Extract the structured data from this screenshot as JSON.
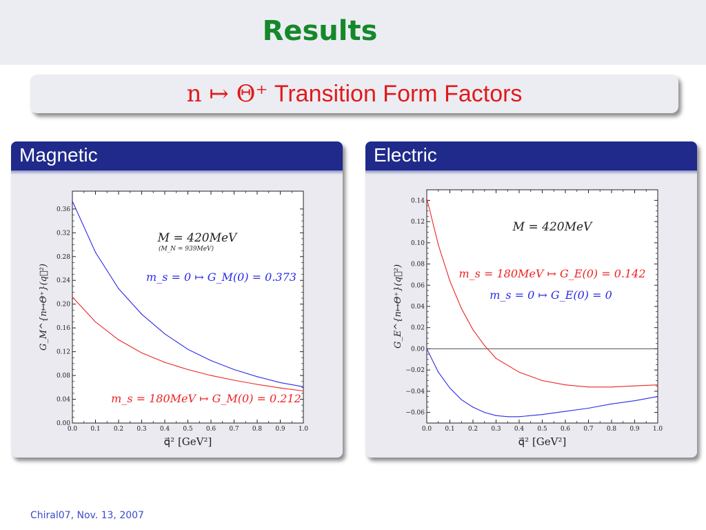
{
  "header": {
    "title": "Results",
    "subtitle_math": "n ↦ Θ⁺",
    "subtitle_text": "Transition Form Factors"
  },
  "footer": {
    "text": "Chiral07, Nov. 13, 2007"
  },
  "colors": {
    "title": "#15882a",
    "subtitle": "#e01a1a",
    "block_head": "#1f2a8a",
    "footer": "#3a4cc9",
    "blue": "#2a2ae8",
    "red": "#ee2222"
  },
  "chart_data": [
    {
      "panel_title": "Magnetic",
      "type": "line",
      "xlabel": "q⃗² [GeV²]",
      "ylabel": "G_M^{n↦Θ⁺}(q⃗²)",
      "xlim": [
        0,
        1.0
      ],
      "ylim": [
        0,
        0.39
      ],
      "xticks": [
        "0.0",
        "0.1",
        "0.2",
        "0.3",
        "0.4",
        "0.5",
        "0.6",
        "0.7",
        "0.8",
        "0.9",
        "1.0"
      ],
      "yticks": [
        "0.00",
        "0.04",
        "0.08",
        "0.12",
        "0.16",
        "0.20",
        "0.24",
        "0.28",
        "0.32",
        "0.36"
      ],
      "yticks_values": [
        0,
        0.04,
        0.08,
        0.12,
        0.16,
        0.2,
        0.24,
        0.28,
        0.32,
        0.36
      ],
      "zero_line": false,
      "annotations": [
        "M = 420MeV",
        "(M_N = 939MeV)"
      ],
      "series": [
        {
          "name": "m_s = 0 ↦ G_M(0) = 0.373",
          "color": "#2a2ae8",
          "x": [
            0,
            0.1,
            0.2,
            0.3,
            0.4,
            0.5,
            0.6,
            0.7,
            0.8,
            0.9,
            1.0
          ],
          "y": [
            0.373,
            0.287,
            0.226,
            0.183,
            0.15,
            0.124,
            0.105,
            0.09,
            0.078,
            0.068,
            0.061
          ]
        },
        {
          "name": "m_s = 180MeV ↦ G_M(0) = 0.212",
          "color": "#ee2222",
          "x": [
            0,
            0.1,
            0.2,
            0.3,
            0.4,
            0.5,
            0.6,
            0.7,
            0.8,
            0.9,
            1.0
          ],
          "y": [
            0.212,
            0.17,
            0.14,
            0.118,
            0.102,
            0.09,
            0.08,
            0.072,
            0.065,
            0.059,
            0.054
          ]
        }
      ]
    },
    {
      "panel_title": "Electric",
      "type": "line",
      "xlabel": "q⃗² [GeV²]",
      "ylabel": "G_E^{n↦Θ⁺}(q⃗²)",
      "xlim": [
        0,
        1.0
      ],
      "ylim": [
        -0.07,
        0.15
      ],
      "xticks": [
        "0.0",
        "0.1",
        "0.2",
        "0.3",
        "0.4",
        "0.5",
        "0.6",
        "0.7",
        "0.8",
        "0.9",
        "1.0"
      ],
      "yticks": [
        "−0.06",
        "−0.04",
        "−0.02",
        "0.00",
        "0.02",
        "0.04",
        "0.06",
        "0.08",
        "0.10",
        "0.12",
        "0.14"
      ],
      "yticks_values": [
        -0.06,
        -0.04,
        -0.02,
        0,
        0.02,
        0.04,
        0.06,
        0.08,
        0.1,
        0.12,
        0.14
      ],
      "zero_line": true,
      "annotations": [
        "M = 420MeV"
      ],
      "series": [
        {
          "name": "m_s = 180MeV ↦ G_E(0) = 0.142",
          "color": "#ee2222",
          "x": [
            0,
            0.05,
            0.1,
            0.15,
            0.2,
            0.25,
            0.3,
            0.4,
            0.5,
            0.6,
            0.7,
            0.8,
            0.9,
            1.0
          ],
          "y": [
            0.142,
            0.098,
            0.064,
            0.038,
            0.018,
            0.003,
            -0.009,
            -0.022,
            -0.03,
            -0.034,
            -0.036,
            -0.036,
            -0.035,
            -0.034
          ]
        },
        {
          "name": "m_s = 0 ↦ G_E(0) = 0",
          "color": "#2a2ae8",
          "x": [
            0,
            0.05,
            0.1,
            0.15,
            0.2,
            0.25,
            0.3,
            0.35,
            0.4,
            0.5,
            0.6,
            0.7,
            0.8,
            0.9,
            1.0
          ],
          "y": [
            0,
            -0.022,
            -0.037,
            -0.048,
            -0.055,
            -0.06,
            -0.063,
            -0.064,
            -0.064,
            -0.062,
            -0.059,
            -0.056,
            -0.052,
            -0.049,
            -0.045
          ]
        }
      ]
    }
  ]
}
